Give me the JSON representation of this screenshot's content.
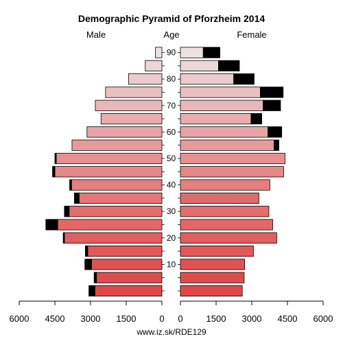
{
  "chart_data": {
    "type": "bar",
    "title": "Demographic Pyramid of Pforzheim 2014",
    "left_label": "Male",
    "center_label": "Age",
    "right_label": "Female",
    "source": "www.iz.sk/RDE129",
    "age_groups": [
      "0-4",
      "5-9",
      "10-14",
      "15-19",
      "20-24",
      "25-29",
      "30-34",
      "35-39",
      "40-44",
      "45-49",
      "50-54",
      "55-59",
      "60-64",
      "65-69",
      "70-74",
      "75-79",
      "80-84",
      "85-89",
      "90+"
    ],
    "age_ticks": [
      10,
      20,
      30,
      40,
      50,
      60,
      70,
      80,
      90
    ],
    "x_ticks": [
      6000,
      4500,
      3000,
      1500,
      0
    ],
    "x_ticks_right": [
      0,
      1500,
      3000,
      4500,
      6000
    ],
    "xlim": [
      0,
      6000
    ],
    "series": [
      {
        "name": "Male",
        "values": [
          2820,
          2750,
          2960,
          3120,
          4100,
          4380,
          3900,
          3480,
          3800,
          4500,
          4440,
          3780,
          3150,
          2560,
          2800,
          2370,
          1400,
          700,
          270
        ],
        "excess": [
          250,
          100,
          280,
          100,
          50,
          500,
          200,
          200,
          80,
          100,
          60,
          0,
          0,
          0,
          0,
          0,
          0,
          0,
          0
        ]
      },
      {
        "name": "Female",
        "values": [
          2600,
          2680,
          2700,
          3070,
          4050,
          3880,
          3720,
          3300,
          3760,
          4340,
          4400,
          3940,
          3680,
          2970,
          3480,
          3360,
          2240,
          1600,
          960
        ],
        "excess": [
          0,
          0,
          0,
          0,
          0,
          0,
          0,
          0,
          0,
          0,
          0,
          200,
          580,
          450,
          730,
          960,
          860,
          880,
          700
        ]
      }
    ],
    "colors": {
      "low_age": "#e04848",
      "high_age": "#ede0e0",
      "excess": "#000000",
      "stripe_age": "35-39"
    }
  }
}
